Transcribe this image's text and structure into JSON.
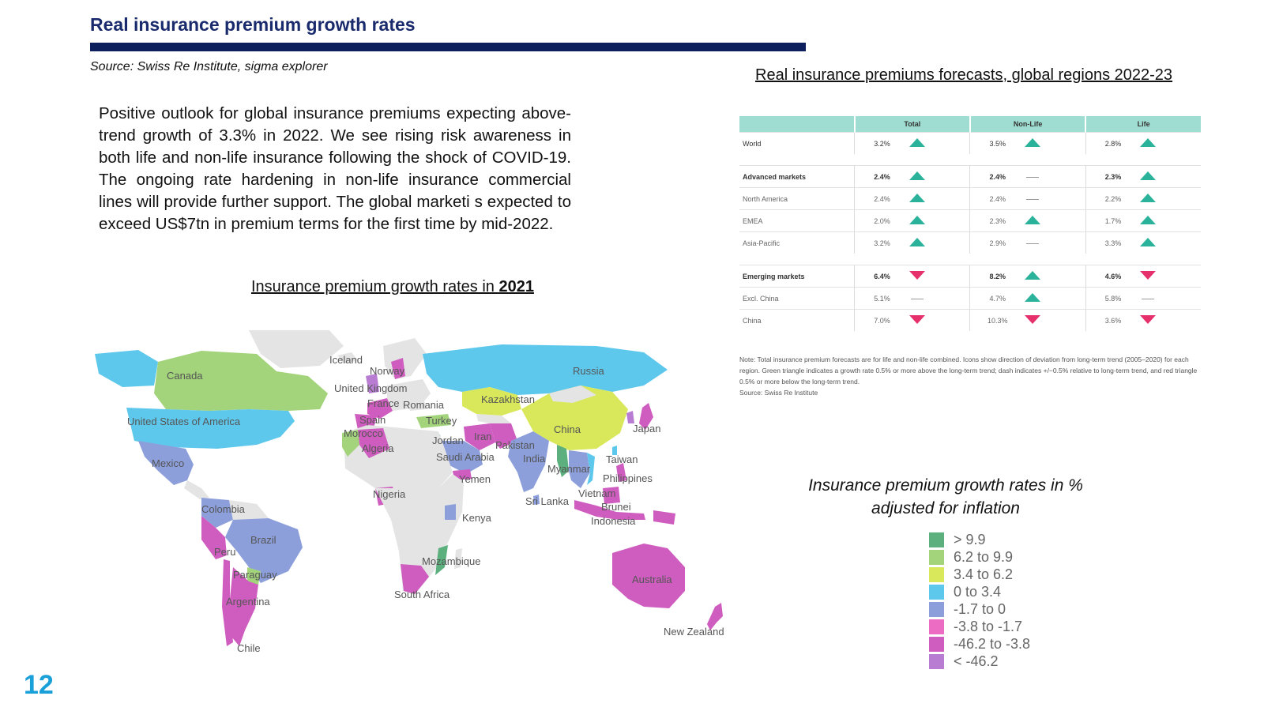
{
  "header": {
    "title": "Real insurance premium growth rates",
    "source": "Source: Swiss Re Institute, sigma explorer",
    "page_number": "12"
  },
  "intro": {
    "text": "Positive outlook for global insurance premiums expecting above-trend growth of 3.3% in 2022. We see rising risk awareness in both life and non-life insurance following the shock of COVID-19. The ongoing rate hardening in non-life insurance commercial lines will provide further support. The global marketi s expected to exceed US$7tn in premium terms for the first time by mid-2022."
  },
  "map": {
    "title_prefix": "Insurance premium growth rates in ",
    "title_year": "2021",
    "labels": [
      "Iceland",
      "Norway",
      "United Kingdom",
      "France",
      "Romania",
      "Russia",
      "Canada",
      "Kazakhstan",
      "Spain",
      "Turkey",
      "Morocco",
      "Iran",
      "United States of America",
      "Algeria",
      "Jordan",
      "Pakistan",
      "China",
      "Japan",
      "Saudi Arabia",
      "India",
      "Mexico",
      "Myanmar",
      "Taiwan",
      "Yemen",
      "Philippines",
      "Nigeria",
      "Sri Lanka",
      "Vietnam",
      "Colombia",
      "Kenya",
      "Brunei",
      "Indonesia",
      "Brazil",
      "Peru",
      "Mozambique",
      "Paraguay",
      "Australia",
      "South Africa",
      "Argentina",
      "New Zealand",
      "Chile"
    ]
  },
  "table": {
    "title": "Real insurance premiums forecasts, global regions 2022-23",
    "headers": [
      "",
      "Total",
      "Non-Life",
      "Life"
    ],
    "rows": [
      {
        "name": "World",
        "total": "3.2%",
        "total_trend": "up",
        "nonlife": "3.5%",
        "nonlife_trend": "up",
        "life": "2.8%",
        "life_trend": "up",
        "style": "normal"
      },
      {
        "name": "Advanced markets",
        "total": "2.4%",
        "total_trend": "up",
        "nonlife": "2.4%",
        "nonlife_trend": "flat",
        "life": "2.3%",
        "life_trend": "up",
        "style": "bold"
      },
      {
        "name": "North America",
        "total": "2.4%",
        "total_trend": "up",
        "nonlife": "2.4%",
        "nonlife_trend": "flat",
        "life": "2.2%",
        "life_trend": "up",
        "style": "light"
      },
      {
        "name": "EMEA",
        "total": "2.0%",
        "total_trend": "up",
        "nonlife": "2.3%",
        "nonlife_trend": "up",
        "life": "1.7%",
        "life_trend": "up",
        "style": "light"
      },
      {
        "name": "Asia-Pacific",
        "total": "3.2%",
        "total_trend": "up",
        "nonlife": "2.9%",
        "nonlife_trend": "flat",
        "life": "3.3%",
        "life_trend": "up",
        "style": "light"
      },
      {
        "name": "Emerging markets",
        "total": "6.4%",
        "total_trend": "down",
        "nonlife": "8.2%",
        "nonlife_trend": "up",
        "life": "4.6%",
        "life_trend": "down",
        "style": "bold"
      },
      {
        "name": "Excl. China",
        "total": "5.1%",
        "total_trend": "flat",
        "nonlife": "4.7%",
        "nonlife_trend": "up",
        "life": "5.8%",
        "life_trend": "flat",
        "style": "light"
      },
      {
        "name": "China",
        "total": "7.0%",
        "total_trend": "down",
        "nonlife": "10.3%",
        "nonlife_trend": "down",
        "life": "3.6%",
        "life_trend": "down",
        "style": "light"
      }
    ],
    "note": "Note: Total insurance premium forecasts are for life and non-life combined. Icons show direction of deviation from long-term trend (2005–2020) for each region. Green triangle indicates a growth rate 0.5% or more above the long-term trend; dash indicates +/−0.5% relative to long-term trend, and red triangle 0.5% or more below the long-term trend.",
    "note_source": "Source: Swiss Re Institute"
  },
  "legend": {
    "title_line1": "Insurance premium growth rates in %",
    "title_line2": "adjusted for inflation",
    "items": [
      {
        "label": "> 9.9",
        "color": "#5bb07e"
      },
      {
        "label": "6.2 to 9.9",
        "color": "#a3d47c"
      },
      {
        "label": "3.4 to 6.2",
        "color": "#d8e85a"
      },
      {
        "label": "0 to 3.4",
        "color": "#5ec8ec"
      },
      {
        "label": "-1.7 to 0",
        "color": "#8c9fdb"
      },
      {
        "label": "-3.8 to -1.7",
        "color": "#ec6cc3"
      },
      {
        "label": "-46.2 to -3.8",
        "color": "#cf5cbf"
      },
      {
        "label": "< -46.2",
        "color": "#b87dd2"
      }
    ]
  },
  "colors": {
    "title": "#1a2b6d",
    "rule": "#0d1f5c",
    "page_number": "#1aa0d8",
    "table_header": "#9fdcd1",
    "trend_up": "#2ab39a",
    "trend_down": "#e6306c",
    "no_data": "#e4e4e4"
  }
}
